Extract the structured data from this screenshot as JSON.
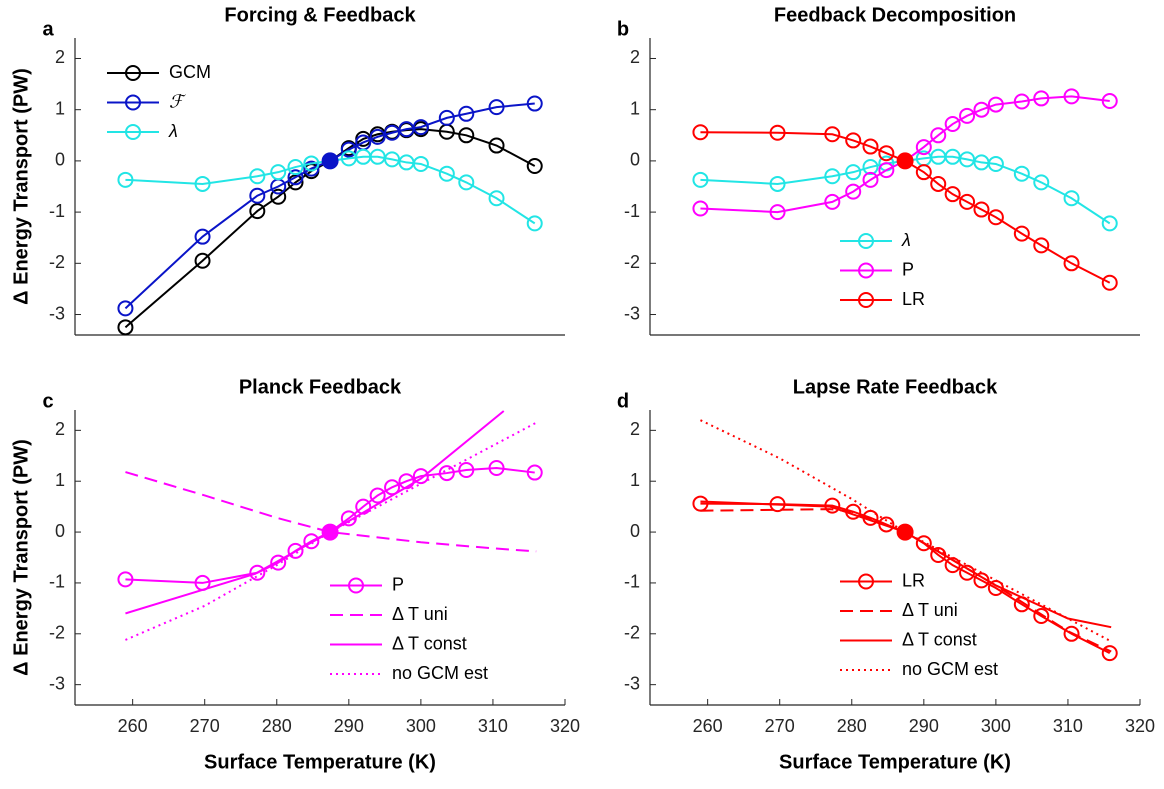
{
  "chart_data": [
    {
      "type": "line",
      "label": "a",
      "title": "Forcing & Feedback",
      "ylabel": "Δ Energy Transport (PW)",
      "x": [
        259,
        269.7,
        277.3,
        280.2,
        282.6,
        284.8,
        287.4,
        290,
        292,
        294,
        296,
        298,
        300,
        303.6,
        306.3,
        310.5,
        315.8
      ],
      "xlim": [
        252,
        320
      ],
      "ylim": [
        -3.4,
        2.4
      ],
      "yticks": [
        -3,
        -2,
        -1,
        0,
        1,
        2
      ],
      "legend": "upper left",
      "series": [
        {
          "name": "GCM",
          "color": "#000000",
          "style": "solid",
          "marker": "o",
          "values": [
            -3.25,
            -1.95,
            -0.98,
            -0.7,
            -0.42,
            -0.2,
            0,
            0.25,
            0.43,
            0.52,
            0.57,
            0.6,
            0.62,
            0.57,
            0.5,
            0.3,
            -0.1
          ]
        },
        {
          "name": "ℱ",
          "color": "#0a14c8",
          "style": "solid",
          "marker": "o",
          "values": [
            -2.88,
            -1.48,
            -0.68,
            -0.5,
            -0.32,
            -0.15,
            0,
            0.22,
            0.36,
            0.47,
            0.55,
            0.62,
            0.66,
            0.84,
            0.92,
            1.05,
            1.12
          ]
        },
        {
          "name": "λ",
          "color": "#22e5e5",
          "style": "solid",
          "marker": "o",
          "values": [
            -0.37,
            -0.45,
            -0.3,
            -0.22,
            -0.12,
            -0.05,
            0,
            0.05,
            0.08,
            0.08,
            0.03,
            -0.03,
            -0.06,
            -0.25,
            -0.42,
            -0.73,
            -1.22
          ]
        }
      ],
      "reference_point": {
        "x": 287.4,
        "y": 0,
        "color": "#0a14c8"
      }
    },
    {
      "type": "line",
      "label": "b",
      "title": "Feedback Decomposition",
      "x": [
        259,
        269.7,
        277.3,
        280.2,
        282.6,
        284.8,
        287.4,
        290,
        292,
        294,
        296,
        298,
        300,
        303.6,
        306.3,
        310.5,
        315.8
      ],
      "xlim": [
        252,
        320
      ],
      "ylim": [
        -3.4,
        2.4
      ],
      "yticks": [
        -3,
        -2,
        -1,
        0,
        1,
        2
      ],
      "legend": "lower center",
      "series": [
        {
          "name": "λ",
          "color": "#22e5e5",
          "style": "solid",
          "marker": "o",
          "values": [
            -0.37,
            -0.45,
            -0.3,
            -0.22,
            -0.12,
            -0.05,
            0,
            0.05,
            0.08,
            0.08,
            0.03,
            -0.03,
            -0.06,
            -0.25,
            -0.42,
            -0.73,
            -1.22
          ]
        },
        {
          "name": "P",
          "color": "#ff00ff",
          "style": "solid",
          "marker": "o",
          "values": [
            -0.93,
            -1.0,
            -0.8,
            -0.6,
            -0.37,
            -0.18,
            0,
            0.27,
            0.5,
            0.72,
            0.88,
            1.0,
            1.1,
            1.16,
            1.22,
            1.26,
            1.17
          ]
        },
        {
          "name": "LR",
          "color": "#ff0000",
          "style": "solid",
          "marker": "o",
          "values": [
            0.56,
            0.55,
            0.52,
            0.4,
            0.28,
            0.15,
            0,
            -0.22,
            -0.45,
            -0.65,
            -0.8,
            -0.95,
            -1.1,
            -1.42,
            -1.65,
            -2.0,
            -2.38
          ]
        }
      ],
      "reference_point": {
        "x": 287.4,
        "y": 0,
        "color": "#ff0000"
      }
    },
    {
      "type": "line",
      "label": "c",
      "title": "Planck Feedback",
      "ylabel": "Δ Energy Transport (PW)",
      "xlabel": "Surface Temperature (K)",
      "x": [
        259,
        269.7,
        277.3,
        280.2,
        282.6,
        284.8,
        287.4,
        290,
        292,
        294,
        296,
        298,
        300,
        303.6,
        306.3,
        310.5,
        315.8
      ],
      "xlim": [
        252,
        320
      ],
      "xticks": [
        260,
        270,
        280,
        290,
        300,
        310,
        320
      ],
      "ylim": [
        -3.4,
        2.4
      ],
      "yticks": [
        -3,
        -2,
        -1,
        0,
        1,
        2
      ],
      "legend": "lower right",
      "series": [
        {
          "name": "P",
          "color": "#ff00ff",
          "style": "solid",
          "marker": "o",
          "values": [
            -0.93,
            -1.0,
            -0.8,
            -0.6,
            -0.37,
            -0.18,
            0,
            0.27,
            0.5,
            0.72,
            0.88,
            1.0,
            1.1,
            1.16,
            1.22,
            1.26,
            1.17
          ]
        },
        {
          "name": "Δ T uni",
          "color": "#ff00ff",
          "style": "dashed",
          "x": [
            259,
            270,
            280,
            287.4,
            300,
            310,
            316
          ],
          "values": [
            1.18,
            0.72,
            0.28,
            0,
            -0.2,
            -0.32,
            -0.38
          ]
        },
        {
          "name": "Δ T const",
          "color": "#ff00ff",
          "style": "solid",
          "x": [
            259,
            277,
            287.4,
            300,
            311.5
          ],
          "values": [
            -1.6,
            -0.82,
            0,
            1.05,
            2.38
          ]
        },
        {
          "name": "no GCM est",
          "color": "#ff00ff",
          "style": "dotted",
          "x": [
            259,
            270,
            280,
            287.4,
            300,
            316
          ],
          "values": [
            -2.12,
            -1.45,
            -0.65,
            0,
            0.95,
            2.15
          ]
        }
      ],
      "reference_point": {
        "x": 287.4,
        "y": 0,
        "color": "#ff00ff"
      }
    },
    {
      "type": "line",
      "label": "d",
      "title": "Lapse Rate Feedback",
      "xlabel": "Surface Temperature (K)",
      "x": [
        259,
        269.7,
        277.3,
        280.2,
        282.6,
        284.8,
        287.4,
        290,
        292,
        294,
        296,
        298,
        300,
        303.6,
        306.3,
        310.5,
        315.8
      ],
      "xlim": [
        252,
        320
      ],
      "xticks": [
        260,
        270,
        280,
        290,
        300,
        310,
        320
      ],
      "ylim": [
        -3.4,
        2.4
      ],
      "yticks": [
        -3,
        -2,
        -1,
        0,
        1,
        2
      ],
      "legend": "lower center",
      "series": [
        {
          "name": "LR",
          "color": "#ff0000",
          "style": "solid",
          "marker": "o",
          "values": [
            0.56,
            0.55,
            0.52,
            0.4,
            0.28,
            0.15,
            0,
            -0.22,
            -0.45,
            -0.65,
            -0.8,
            -0.95,
            -1.1,
            -1.42,
            -1.65,
            -2.0,
            -2.38
          ]
        },
        {
          "name": "Δ T uni",
          "color": "#ff0000",
          "style": "dashed",
          "x": [
            259,
            277,
            280,
            287.4,
            300,
            310,
            316
          ],
          "values": [
            0.42,
            0.45,
            0.4,
            0,
            -1.05,
            -1.95,
            -2.35
          ]
        },
        {
          "name": "Δ T const",
          "color": "#ff0000",
          "style": "solid",
          "x": [
            259,
            277,
            287.4,
            300,
            310,
            316
          ],
          "values": [
            0.6,
            0.5,
            0,
            -1.05,
            -1.7,
            -1.87
          ]
        },
        {
          "name": "no GCM est",
          "color": "#ff0000",
          "style": "dotted",
          "x": [
            259,
            270,
            280,
            287.4,
            300,
            316
          ],
          "values": [
            2.2,
            1.45,
            0.65,
            0,
            -0.95,
            -2.15
          ]
        }
      ],
      "reference_point": {
        "x": 287.4,
        "y": 0,
        "color": "#ff0000"
      }
    }
  ]
}
